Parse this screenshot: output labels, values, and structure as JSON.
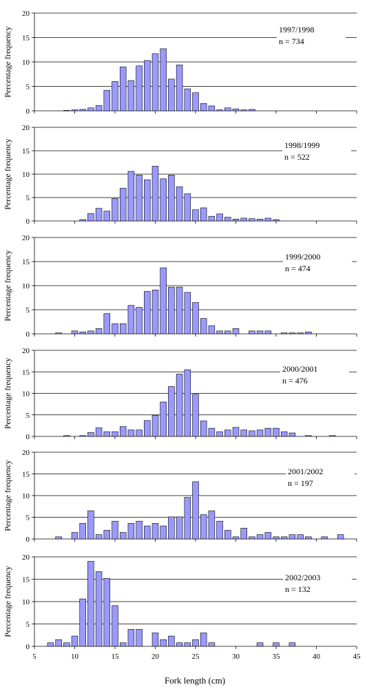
{
  "figure": {
    "xlabel": "Fork length (cm)",
    "x_ticks": [
      5,
      10,
      15,
      20,
      25,
      30,
      35,
      40,
      45
    ],
    "xlim": [
      5,
      45
    ]
  },
  "chart_data": [
    {
      "type": "bar",
      "note_season": "1997/1998",
      "note_n": "n = 734",
      "ylabel": "Percentage frequency",
      "ylim": [
        0,
        20
      ],
      "y_ticks": [
        0,
        5,
        10,
        15,
        20
      ],
      "grid": true,
      "x": [
        9,
        9.5,
        10,
        10.5,
        11,
        11.5,
        12,
        12.5,
        13,
        13.5,
        14,
        14.5,
        15,
        15.5,
        16,
        16.5,
        17,
        17.5,
        18,
        18.5,
        19,
        19.5,
        20,
        20.5,
        21,
        21.5,
        22,
        22.5,
        23,
        23.5,
        24,
        24.5,
        25,
        25.5,
        26,
        26.5,
        27,
        27.5,
        28,
        28.5,
        29,
        29.5,
        30,
        30.5,
        31,
        31.5,
        32,
        32.5,
        33
      ],
      "values": [
        0.1,
        0,
        0.2,
        0,
        0.3,
        0,
        0.6,
        0,
        1.1,
        0,
        4.2,
        0,
        6.0,
        0,
        9.0,
        0,
        6.2,
        0,
        9.2,
        0,
        10.3,
        0,
        11.7,
        0,
        12.7,
        0,
        6.5,
        0,
        9.4,
        0,
        4.5,
        0,
        3.7,
        0,
        1.5,
        0,
        1.0,
        0,
        0.2,
        0,
        0.6,
        0,
        0.4,
        0,
        0.2,
        0,
        0.3,
        0,
        0
      ]
    },
    {
      "type": "bar",
      "note_season": "1998/1999",
      "note_n": "n = 522",
      "ylabel": "Percentage frequency",
      "ylim": [
        0,
        20
      ],
      "y_ticks": [
        0,
        5,
        10,
        15,
        20
      ],
      "grid": true,
      "x": [
        11,
        12,
        13,
        14,
        15,
        16,
        17,
        18,
        19,
        20,
        21,
        22,
        23,
        24,
        25,
        26,
        27,
        28,
        29,
        30,
        31,
        32,
        33,
        34,
        35,
        36,
        37
      ],
      "values": [
        0.3,
        1.6,
        2.7,
        2.1,
        4.8,
        7.0,
        10.6,
        9.8,
        8.8,
        11.7,
        9.0,
        9.8,
        7.3,
        5.8,
        2.4,
        2.8,
        1.0,
        1.5,
        0.8,
        0.4,
        0.6,
        0.5,
        0.4,
        0.6,
        0.3,
        0,
        0
      ]
    },
    {
      "type": "bar",
      "note_season": "1999/2000",
      "note_n": "n = 474",
      "ylabel": "Percentage frequency",
      "ylim": [
        0,
        20
      ],
      "y_ticks": [
        0,
        5,
        10,
        15,
        20
      ],
      "grid": true,
      "x": [
        8,
        9,
        10,
        11,
        12,
        13,
        14,
        15,
        16,
        17,
        18,
        19,
        20,
        21,
        22,
        23,
        24,
        25,
        26,
        27,
        28,
        29,
        30,
        31,
        32,
        33,
        34,
        35,
        36,
        37,
        38,
        39,
        40
      ],
      "values": [
        0.2,
        0,
        0.6,
        0.4,
        0.6,
        1.1,
        4.2,
        2.1,
        2.1,
        5.9,
        5.5,
        8.8,
        9.1,
        13.7,
        9.7,
        9.7,
        8.6,
        6.5,
        3.2,
        1.7,
        0.6,
        0.6,
        1.1,
        0,
        0.6,
        0.6,
        0.6,
        0,
        0.2,
        0.2,
        0.2,
        0.4,
        0
      ]
    },
    {
      "type": "bar",
      "note_season": "2000/2001",
      "note_n": "n = 476",
      "ylabel": "Percentage frequency",
      "ylim": [
        0,
        20
      ],
      "y_ticks": [
        0,
        5,
        10,
        15,
        20
      ],
      "grid": true,
      "x": [
        9,
        10,
        11,
        12,
        13,
        14,
        15,
        16,
        17,
        18,
        19,
        20,
        21,
        22,
        23,
        24,
        25,
        26,
        27,
        28,
        29,
        30,
        31,
        32,
        33,
        34,
        35,
        36,
        37,
        38,
        39,
        40,
        41,
        42,
        43
      ],
      "values": [
        0.2,
        0,
        0.2,
        0.9,
        2.0,
        1.1,
        1.1,
        2.3,
        1.5,
        1.5,
        3.7,
        4.9,
        8.0,
        11.6,
        14.5,
        15.5,
        9.8,
        3.6,
        1.9,
        1.1,
        1.5,
        2.1,
        1.5,
        1.3,
        1.5,
        1.9,
        1.9,
        1.1,
        0.8,
        0,
        0.2,
        0,
        0,
        0.2,
        0
      ]
    },
    {
      "type": "bar",
      "note_season": "2001/2002",
      "note_n": "n = 197",
      "ylabel": "Percentage frequency",
      "ylim": [
        0,
        20
      ],
      "y_ticks": [
        0,
        5,
        10,
        15,
        20
      ],
      "grid": true,
      "x": [
        8,
        9,
        10,
        11,
        12,
        13,
        14,
        15,
        16,
        17,
        18,
        19,
        20,
        21,
        22,
        23,
        24,
        25,
        26,
        27,
        28,
        29,
        30,
        31,
        32,
        33,
        34,
        35,
        36,
        37,
        38,
        39,
        40,
        41,
        42,
        43
      ],
      "values": [
        0.5,
        0,
        1.5,
        3.6,
        6.5,
        1.0,
        2.0,
        4.1,
        1.5,
        3.6,
        4.1,
        3.0,
        3.6,
        3.0,
        5.1,
        5.1,
        9.6,
        13.2,
        5.6,
        6.5,
        4.1,
        2.0,
        0.5,
        2.5,
        0.5,
        1.0,
        1.5,
        0.5,
        0.5,
        1.0,
        1.0,
        0.5,
        0,
        0.5,
        0,
        1.0
      ]
    },
    {
      "type": "bar",
      "note_season": "2002/2003",
      "note_n": "n = 132",
      "ylabel": "Percentage frequency",
      "ylim": [
        0,
        20
      ],
      "y_ticks": [
        0,
        5,
        10,
        15,
        20
      ],
      "grid": true,
      "x": [
        7,
        8,
        9,
        10,
        11,
        12,
        13,
        14,
        15,
        16,
        17,
        18,
        19,
        20,
        21,
        22,
        23,
        24,
        25,
        26,
        27,
        28,
        29,
        30,
        31,
        32,
        33,
        34,
        35,
        36,
        37
      ],
      "values": [
        0.8,
        1.5,
        0.8,
        2.3,
        10.6,
        19.0,
        16.7,
        15.2,
        9.1,
        0.8,
        3.8,
        3.8,
        0,
        3.0,
        1.5,
        2.3,
        0.8,
        0.8,
        1.5,
        3.0,
        0.8,
        0,
        0,
        0,
        0,
        0,
        0.8,
        0,
        0.8,
        0,
        0.8
      ]
    }
  ],
  "colors": {
    "bar_fill": "#9999ff",
    "bar_stroke": "#000000",
    "grid": "#000000"
  }
}
